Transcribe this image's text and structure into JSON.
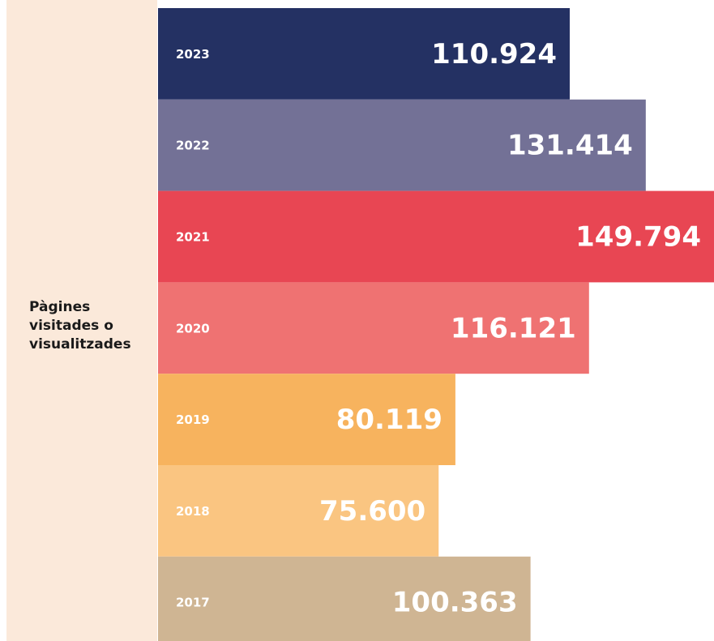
{
  "chart_data": {
    "type": "bar",
    "orientation": "horizontal",
    "axis_label": "Pàgines visitades o visualitzades",
    "categories": [
      "2023",
      "2022",
      "2021",
      "2020",
      "2019",
      "2018",
      "2017"
    ],
    "values": [
      110924,
      131414,
      149794,
      116121,
      80119,
      75600,
      100363
    ],
    "value_labels": [
      "110.924",
      "131.414",
      "149.794",
      "116.121",
      "80.119",
      "75.600",
      "100.363"
    ],
    "colors": [
      "#243163",
      "#737196",
      "#e84653",
      "#ef7272",
      "#f7b35e",
      "#fac581",
      "#cfb593"
    ]
  }
}
